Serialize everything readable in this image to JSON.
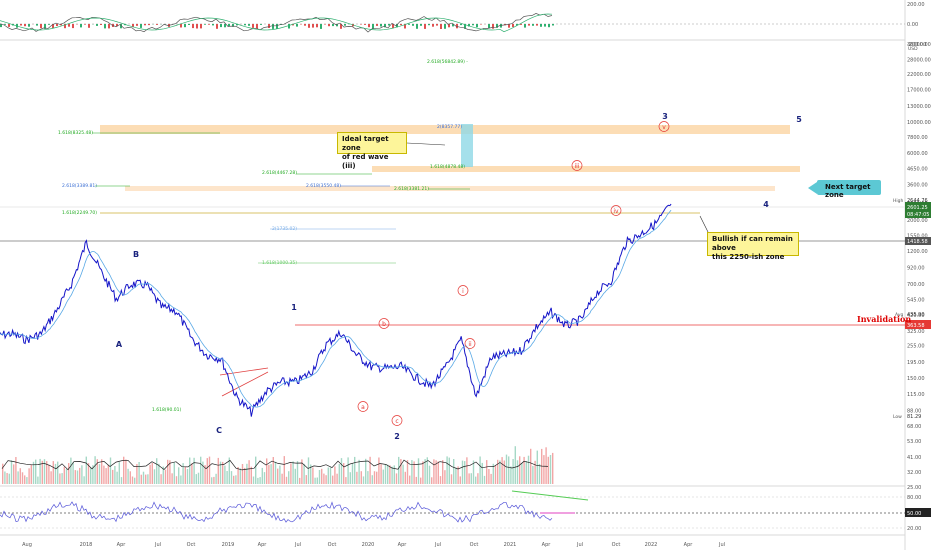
{
  "chart_data": {
    "type": "line",
    "scale": "log",
    "price_axis_ticks": [
      "36000.00",
      "28000.00",
      "22000.00",
      "17000.00",
      "13000.00",
      "10000.00",
      "7800.00",
      "6000.00",
      "4650.00",
      "3600.00",
      "2650.00",
      "2000.00",
      "1550.00",
      "1200.00",
      "920.00",
      "700.00",
      "545.00",
      "420.00",
      "325.00",
      "255.00",
      "195.00",
      "150.00",
      "115.00",
      "88.00",
      "68.00",
      "53.00",
      "41.00",
      "32.00",
      "25.00"
    ],
    "top_axis_ticks": [
      "200.00",
      "0.00",
      "-200.00"
    ],
    "rsi_axis_ticks": [
      "80.00",
      "50.00",
      "20.00"
    ],
    "rsi_current_label": "50.00",
    "time_axis_ticks": [
      "Aug",
      "2018",
      "Apr",
      "Jul",
      "Oct",
      "2019",
      "Apr",
      "Jul",
      "Oct",
      "2020",
      "Apr",
      "Jul",
      "Oct",
      "2021",
      "Apr",
      "Jul",
      "Oct",
      "2022",
      "Apr",
      "Jul"
    ],
    "scale_label": "USD",
    "price_markers": {
      "high_label": "High",
      "high_value": "2644.76",
      "last_value": "2601.25",
      "countdown": "08:47:05",
      "level_1418": "1418.58",
      "avg_label": "Avg",
      "avg_value": "435.90",
      "invalidation_value": "363.58",
      "low_label": "Low",
      "low_value": "81.29"
    },
    "price_path": [
      [
        "2017-07",
        300
      ],
      [
        "2017-08",
        310
      ],
      [
        "2017-09",
        280
      ],
      [
        "2017-10",
        310
      ],
      [
        "2017-11",
        450
      ],
      [
        "2017-12",
        700
      ],
      [
        "2018-01",
        1380
      ],
      [
        "2018-02",
        850
      ],
      [
        "2018-03",
        550
      ],
      [
        "2018-04",
        700
      ],
      [
        "2018-05",
        690
      ],
      [
        "2018-06",
        480
      ],
      [
        "2018-07",
        450
      ],
      [
        "2018-08",
        290
      ],
      [
        "2018-09",
        220
      ],
      [
        "2018-10",
        205
      ],
      [
        "2018-11",
        110
      ],
      [
        "2018-12",
        85
      ],
      [
        "2019-01",
        120
      ],
      [
        "2019-02",
        140
      ],
      [
        "2019-03",
        140
      ],
      [
        "2019-04",
        165
      ],
      [
        "2019-05",
        260
      ],
      [
        "2019-06",
        315
      ],
      [
        "2019-07",
        220
      ],
      [
        "2019-08",
        180
      ],
      [
        "2019-09",
        175
      ],
      [
        "2019-10",
        180
      ],
      [
        "2019-11",
        150
      ],
      [
        "2019-12",
        130
      ],
      [
        "2020-01",
        180
      ],
      [
        "2020-02",
        280
      ],
      [
        "2020-03",
        110
      ],
      [
        "2020-04",
        210
      ],
      [
        "2020-05",
        220
      ],
      [
        "2020-06",
        235
      ],
      [
        "2020-07",
        345
      ],
      [
        "2020-08",
        440
      ],
      [
        "2020-09",
        350
      ],
      [
        "2020-10",
        390
      ],
      [
        "2020-11",
        600
      ],
      [
        "2020-12",
        740
      ],
      [
        "2021-01",
        1380
      ],
      [
        "2021-02",
        1600
      ],
      [
        "2021-03",
        1900
      ],
      [
        "2021-04",
        2600
      ]
    ],
    "fib_levels": [
      {
        "label": "2.618(56842.89) -",
        "color": "#22aa22"
      },
      {
        "label": "1.618(8325.48)",
        "color": "#22aa22"
      },
      {
        "label": "2(8357.77)",
        "color": "#3b6fd4"
      },
      {
        "label": "1.618(4878.48)",
        "color": "#22aa22"
      },
      {
        "label": "2.618(4467.28)",
        "color": "#22aa22"
      },
      {
        "label": "2.618(3389.81)",
        "color": "#3b6fd4"
      },
      {
        "label": "2.618(3550.48)",
        "color": "#3b6fd4"
      },
      {
        "label": "2.618(3381.21)",
        "color": "#22aa22"
      },
      {
        "label": "1.618(2249.70)",
        "color": "#22aa22"
      },
      {
        "label": "2(1735.02)",
        "color": "#7aaee8"
      },
      {
        "label": "1.618(1000.35)",
        "color": "#66cc66"
      },
      {
        "label": "1.618(90.01)",
        "color": "#22aa22"
      }
    ],
    "wave_labels": [
      "A",
      "B",
      "C",
      "1",
      "2",
      "3",
      "4",
      "5",
      "a",
      "b",
      "c",
      "i",
      "ii",
      "iii",
      "iv",
      "v"
    ],
    "annotations": {
      "ideal_target_zone": "Ideal target zone of red wave (iii)",
      "ideal_target_zone_lines": [
        "Ideal target zone",
        "of red wave (iii)"
      ],
      "next_target_zone": "Next target zone",
      "bullish_note": "Bullish if can remain above this 2250-ish zone",
      "bullish_note_lines": [
        "Bullish if can remain above",
        "this 2250-ish zone"
      ],
      "invalidation": "Invalidation"
    }
  }
}
